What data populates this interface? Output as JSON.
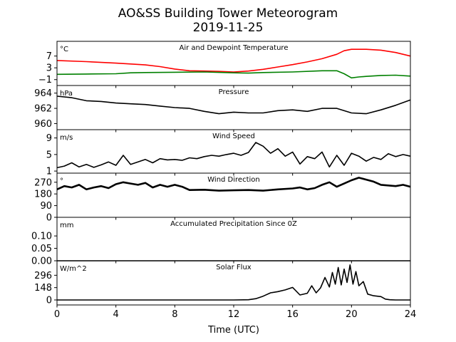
{
  "figure": {
    "title_line1": "AO&SS Building Tower Meteorogram",
    "title_line2": "2019-11-25",
    "xlabel": "Time (UTC)",
    "xticks": [
      "0",
      "4",
      "8",
      "12",
      "16",
      "20",
      "24"
    ]
  },
  "panels": [
    {
      "unit": "°C",
      "title": "Air and Dewpoint Temperature",
      "yticks": [
        "7",
        "3",
        "−1"
      ]
    },
    {
      "unit": "hPa",
      "title": "Pressure",
      "yticks": [
        "964",
        "962",
        "960"
      ]
    },
    {
      "unit": "m/s",
      "title": "Wind Speed",
      "yticks": [
        "9",
        "5",
        "1"
      ]
    },
    {
      "unit": "°",
      "title": "Wind Direction",
      "yticks": [
        "270",
        "180",
        "90",
        "0"
      ]
    },
    {
      "unit": "mm",
      "title": "Accumulated Precipitation Since 0Z",
      "yticks": [
        "0.10",
        "0.05",
        "0.00"
      ]
    },
    {
      "unit": "W/m^2",
      "title": "Solar Flux",
      "yticks": [
        "296",
        "148",
        "0"
      ]
    }
  ],
  "colors": {
    "air_temp": "#ff0000",
    "dewpoint": "#008000",
    "line": "#000000"
  },
  "chart_data": [
    {
      "type": "line",
      "title": "Air and Dewpoint Temperature",
      "ylabel": "°C",
      "xlim": [
        0,
        24
      ],
      "ylim": [
        -3,
        12
      ],
      "yticks": [
        7,
        3,
        -1
      ],
      "series": [
        {
          "color": "red",
          "x": [
            0,
            2,
            4,
            6,
            7,
            8,
            9,
            10,
            11,
            12,
            13,
            14,
            15,
            16,
            17,
            18,
            19,
            19.5,
            20,
            21,
            22,
            23,
            24
          ],
          "y": [
            5.5,
            5.1,
            4.6,
            4.0,
            3.4,
            2.6,
            2.0,
            1.9,
            1.8,
            1.6,
            1.9,
            2.5,
            3.3,
            4.1,
            5.0,
            6.1,
            7.6,
            8.8,
            9.3,
            9.3,
            9.0,
            8.2,
            7.0
          ]
        },
        {
          "color": "green",
          "x": [
            0,
            2,
            4,
            5,
            6,
            8,
            10,
            12,
            13,
            14,
            16,
            18,
            19,
            19.5,
            20,
            20.5,
            21,
            22,
            23,
            24
          ],
          "y": [
            0.8,
            0.9,
            1.0,
            1.3,
            1.4,
            1.5,
            1.6,
            1.3,
            1.2,
            1.4,
            1.6,
            2.0,
            2.0,
            1.0,
            -0.4,
            -0.1,
            0.1,
            0.4,
            0.5,
            0.2
          ]
        }
      ]
    },
    {
      "type": "line",
      "title": "Pressure",
      "ylabel": "hPa",
      "xlim": [
        0,
        24
      ],
      "ylim": [
        959.2,
        965.0
      ],
      "yticks": [
        964,
        962,
        960
      ],
      "series": [
        {
          "color": "black",
          "x": [
            0,
            1,
            2,
            3,
            4,
            5,
            6,
            7,
            8,
            9,
            10,
            11,
            12,
            13,
            14,
            15,
            16,
            17,
            18,
            19,
            20,
            21,
            22,
            23,
            24
          ],
          "y": [
            963.6,
            963.4,
            963.0,
            962.9,
            962.7,
            962.6,
            962.5,
            962.3,
            962.1,
            962.0,
            961.6,
            961.3,
            961.5,
            961.4,
            961.4,
            961.7,
            961.8,
            961.6,
            962.0,
            962.0,
            961.4,
            961.3,
            961.8,
            962.4,
            963.1
          ]
        }
      ]
    },
    {
      "type": "line",
      "title": "Wind Speed",
      "ylabel": "m/s",
      "xlim": [
        0,
        24
      ],
      "ylim": [
        0.5,
        11
      ],
      "yticks": [
        9,
        5,
        1
      ],
      "series": [
        {
          "color": "black",
          "x": [
            0,
            0.5,
            1,
            1.5,
            2,
            2.5,
            3,
            3.5,
            4,
            4.5,
            5,
            5.5,
            6,
            6.5,
            7,
            7.5,
            8,
            8.5,
            9,
            9.5,
            10,
            10.5,
            11,
            11.5,
            12,
            12.5,
            13,
            13.5,
            14,
            14.5,
            15,
            15.5,
            16,
            16.5,
            17,
            17.5,
            18,
            18.5,
            19,
            19.5,
            20,
            20.5,
            21,
            21.5,
            22,
            22.5,
            23,
            23.5,
            24
          ],
          "y": [
            1.8,
            2.2,
            3.0,
            2.0,
            2.6,
            1.9,
            2.5,
            3.2,
            2.4,
            4.8,
            2.6,
            3.2,
            3.8,
            3.0,
            4.0,
            3.7,
            3.8,
            3.6,
            4.2,
            4.0,
            4.5,
            4.8,
            4.6,
            5.0,
            5.3,
            4.8,
            5.5,
            7.9,
            7.0,
            5.3,
            6.4,
            4.6,
            5.6,
            2.7,
            4.5,
            4.0,
            5.6,
            2.0,
            4.8,
            2.4,
            5.3,
            4.6,
            3.4,
            4.3,
            3.8,
            5.2,
            4.5,
            5.0,
            4.6
          ]
        }
      ]
    },
    {
      "type": "line",
      "title": "Wind Direction",
      "ylabel": "°",
      "xlim": [
        0,
        24
      ],
      "ylim": [
        0,
        340
      ],
      "yticks": [
        270,
        180,
        90,
        0
      ],
      "series": [
        {
          "color": "black",
          "x": [
            0,
            0.5,
            1,
            1.5,
            2,
            2.5,
            3,
            3.5,
            4,
            4.5,
            5,
            5.5,
            6,
            6.5,
            7,
            7.5,
            8,
            8.5,
            9,
            10,
            11,
            12,
            13,
            14,
            15,
            16,
            16.5,
            17,
            17.5,
            18,
            18.5,
            19,
            19.5,
            20,
            20.5,
            21,
            21.5,
            22,
            22.5,
            23,
            23.5,
            24
          ],
          "y": [
            215,
            240,
            230,
            250,
            215,
            230,
            240,
            225,
            255,
            270,
            260,
            250,
            265,
            230,
            250,
            235,
            250,
            235,
            210,
            212,
            205,
            208,
            210,
            205,
            215,
            222,
            230,
            215,
            225,
            250,
            270,
            235,
            260,
            285,
            305,
            290,
            275,
            250,
            245,
            240,
            250,
            235
          ]
        }
      ]
    },
    {
      "type": "line",
      "title": "Accumulated Precipitation Since 0Z",
      "ylabel": "mm",
      "xlim": [
        0,
        24
      ],
      "ylim": [
        0,
        0.175
      ],
      "yticks": [
        0.1,
        0.05,
        0.0
      ],
      "series": [
        {
          "color": "black",
          "x": [
            0,
            24
          ],
          "y": [
            0,
            0
          ]
        }
      ]
    },
    {
      "type": "line",
      "title": "Solar Flux",
      "ylabel": "W/m^2",
      "xlim": [
        0,
        24
      ],
      "ylim": [
        -60,
        470
      ],
      "yticks": [
        296,
        148,
        0
      ],
      "series": [
        {
          "color": "black",
          "x": [
            0,
            8,
            12,
            13,
            13.5,
            14,
            14.5,
            15,
            15.5,
            16,
            16.5,
            17,
            17.3,
            17.6,
            17.9,
            18.2,
            18.5,
            18.7,
            18.9,
            19.1,
            19.3,
            19.5,
            19.7,
            19.9,
            20.1,
            20.3,
            20.5,
            20.8,
            21.1,
            21.5,
            22,
            22.3,
            22.6,
            23,
            24
          ],
          "y": [
            0,
            0,
            0,
            2,
            15,
            45,
            85,
            100,
            120,
            150,
            60,
            80,
            170,
            85,
            145,
            270,
            155,
            330,
            190,
            390,
            180,
            370,
            210,
            420,
            190,
            340,
            170,
            220,
            70,
            50,
            40,
            10,
            2,
            0,
            0
          ]
        }
      ]
    }
  ]
}
